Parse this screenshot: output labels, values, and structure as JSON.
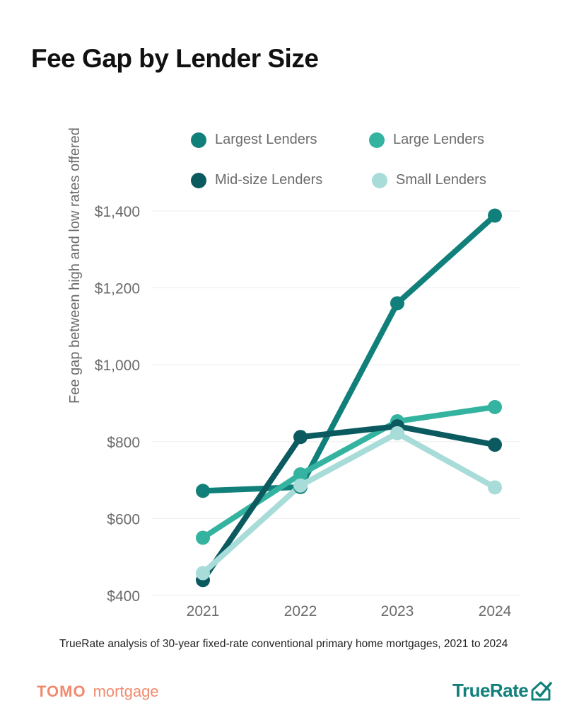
{
  "page": {
    "title": "Fee Gap by Lender Size",
    "note": "TrueRate analysis of 30-year fixed-rate conventional primary home mortgages, 2021 to 2024",
    "brand_left_a": "TOMO",
    "brand_left_b": "mortgage",
    "brand_right": "TrueRate"
  },
  "colors": {
    "largest": "#12807a",
    "large": "#34b3a0",
    "midsize": "#0a5a5f",
    "small": "#a7dcd9",
    "grid": "#eeeeee",
    "axis_text": "#6b6b6b",
    "brand_left": "#f08a6e"
  },
  "chart_data": {
    "type": "line",
    "title": "Fee Gap by Lender Size",
    "xlabel": "",
    "ylabel": "Fee gap between high and low rates offered",
    "x": [
      "2021",
      "2022",
      "2023",
      "2024"
    ],
    "y_ticks": [
      "$400",
      "$600",
      "$800",
      "$1,000",
      "$1,200",
      "$1,400"
    ],
    "y_tick_values": [
      400,
      600,
      800,
      1000,
      1200,
      1400
    ],
    "ylim": [
      400,
      1400
    ],
    "grid": true,
    "legend_position": "top",
    "series": [
      {
        "name": "Largest Lenders",
        "color_key": "largest",
        "values": [
          672,
          682,
          1160,
          1388
        ]
      },
      {
        "name": "Large Lenders",
        "color_key": "large",
        "values": [
          550,
          715,
          853,
          890
        ]
      },
      {
        "name": "Mid-size Lenders",
        "color_key": "midsize",
        "values": [
          440,
          812,
          840,
          792
        ]
      },
      {
        "name": "Small Lenders",
        "color_key": "small",
        "values": [
          458,
          686,
          822,
          681
        ]
      }
    ]
  }
}
